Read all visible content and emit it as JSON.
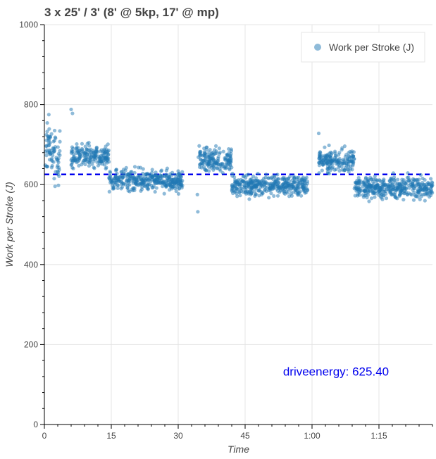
{
  "chart_data": {
    "type": "scatter",
    "title": "3 x 25' / 3' (8' @ 5kp, 17' @ mp)",
    "xlabel": "Time",
    "ylabel": "Work per Stroke (J)",
    "xlim": [
      0,
      87
    ],
    "ylim": [
      0,
      1000
    ],
    "x_tick_values": [
      0,
      15,
      30,
      45,
      60,
      75
    ],
    "x_tick_labels": [
      "0",
      "15",
      "30",
      "45",
      "1:00",
      "1:15"
    ],
    "y_ticks": [
      0,
      200,
      400,
      600,
      800,
      1000
    ],
    "grid": true,
    "legend_position": "top-right",
    "series": [
      {
        "name": "Work per Stroke (J)",
        "color": "#1f77b4",
        "segments": [
          {
            "x_start": 0.0,
            "x_end": 2.0,
            "mean": 690,
            "spread": 28
          },
          {
            "x_start": 2.0,
            "x_end": 3.5,
            "mean": 665,
            "spread": 30
          },
          {
            "x_start": 6.0,
            "x_end": 14.5,
            "mean": 672,
            "spread": 14
          },
          {
            "x_start": 14.5,
            "x_end": 31.0,
            "mean": 610,
            "spread": 13
          },
          {
            "x_start": 34.5,
            "x_end": 42.0,
            "mean": 662,
            "spread": 14
          },
          {
            "x_start": 42.0,
            "x_end": 59.0,
            "mean": 598,
            "spread": 13
          },
          {
            "x_start": 61.5,
            "x_end": 69.5,
            "mean": 660,
            "spread": 13
          },
          {
            "x_start": 69.5,
            "x_end": 87.0,
            "mean": 592,
            "spread": 13
          }
        ],
        "outliers": [
          {
            "x": 1.0,
            "y": 775
          },
          {
            "x": 6.0,
            "y": 788
          },
          {
            "x": 6.3,
            "y": 778
          },
          {
            "x": 2.3,
            "y": 735
          },
          {
            "x": 2.5,
            "y": 716
          },
          {
            "x": 2.2,
            "y": 615
          },
          {
            "x": 34.3,
            "y": 575
          },
          {
            "x": 34.4,
            "y": 532
          },
          {
            "x": 61.5,
            "y": 728
          }
        ]
      }
    ],
    "reference_line": {
      "y": 625.4,
      "style": "dashed",
      "color": "#0000ee"
    },
    "annotation": {
      "text": "driveenergy: 625.40",
      "color": "#0000ee",
      "x": 53.5,
      "y": 122
    }
  }
}
